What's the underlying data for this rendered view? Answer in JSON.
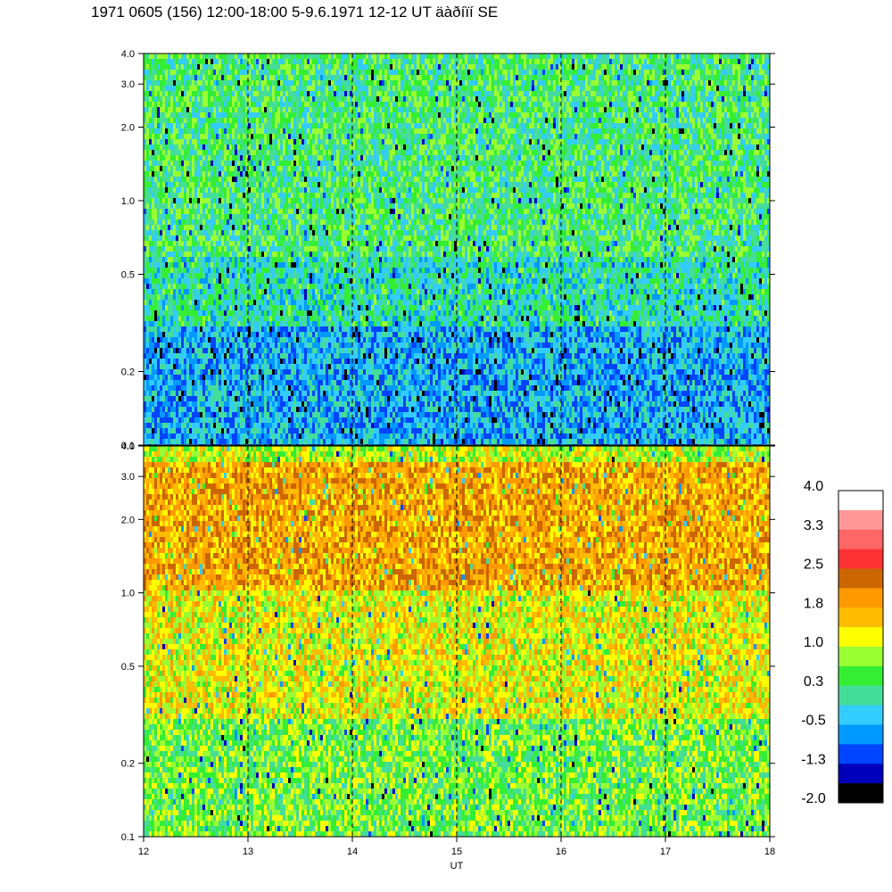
{
  "title": "1971 0605 (156) 12:00-18:00 5-9.6.1971  12-12 UT äàðíïí SE",
  "chart_data": [
    {
      "type": "heatmap",
      "panel": "upper",
      "x_range": [
        12,
        18
      ],
      "y_range": [
        0.1,
        4.0
      ],
      "y_scale": "log",
      "y_ticks": [
        "4.0",
        "3.0",
        "2.0",
        "1.0",
        "0.5",
        "0.2",
        "0.1"
      ],
      "y_tick_values": [
        4.0,
        3.0,
        2.0,
        1.0,
        0.5,
        0.2,
        0.1
      ],
      "x_gridlines": [
        13,
        14,
        15,
        16,
        17
      ],
      "dominant_values_by_frequency": [
        {
          "freq_range": [
            0.1,
            0.3
          ],
          "value": -0.5
        },
        {
          "freq_range": [
            0.3,
            0.6
          ],
          "value": 0.0
        },
        {
          "freq_range": [
            0.6,
            4.0
          ],
          "value": 0.3
        }
      ]
    },
    {
      "type": "heatmap",
      "panel": "lower",
      "x_range": [
        12,
        18
      ],
      "y_range": [
        0.1,
        4.0
      ],
      "y_scale": "log",
      "y_ticks": [
        "4.0",
        "3.0",
        "2.0",
        "1.0",
        "0.5",
        "0.2",
        "0.1"
      ],
      "y_tick_values": [
        4.0,
        3.0,
        2.0,
        1.0,
        0.5,
        0.2,
        0.1
      ],
      "x_ticks": [
        "12",
        "13",
        "14",
        "15",
        "16",
        "17",
        "18"
      ],
      "x_tick_values": [
        12,
        13,
        14,
        15,
        16,
        17,
        18
      ],
      "x_gridlines": [
        13,
        14,
        15,
        16,
        17
      ],
      "xlabel": "UT",
      "dominant_values_by_frequency": [
        {
          "freq_range": [
            0.1,
            0.3
          ],
          "value": 0.6
        },
        {
          "freq_range": [
            0.3,
            1.0
          ],
          "value": 1.2
        },
        {
          "freq_range": [
            1.0,
            3.5
          ],
          "value": 1.8
        },
        {
          "freq_range": [
            3.5,
            4.0
          ],
          "value": 1.0
        }
      ]
    }
  ],
  "colorbar": {
    "labels": [
      "4.0",
      "3.3",
      "2.5",
      "1.8",
      "1.0",
      "0.3",
      "-0.5",
      "-1.3",
      "-2.0"
    ],
    "colors": [
      "#ffffff",
      "#ff9999",
      "#ff6666",
      "#ff3333",
      "#cc6600",
      "#ff9900",
      "#ffbb00",
      "#ffff00",
      "#99ff33",
      "#33ee33",
      "#44dd99",
      "#33ccff",
      "#0099ff",
      "#0044ff",
      "#0000bb",
      "#000000"
    ]
  }
}
